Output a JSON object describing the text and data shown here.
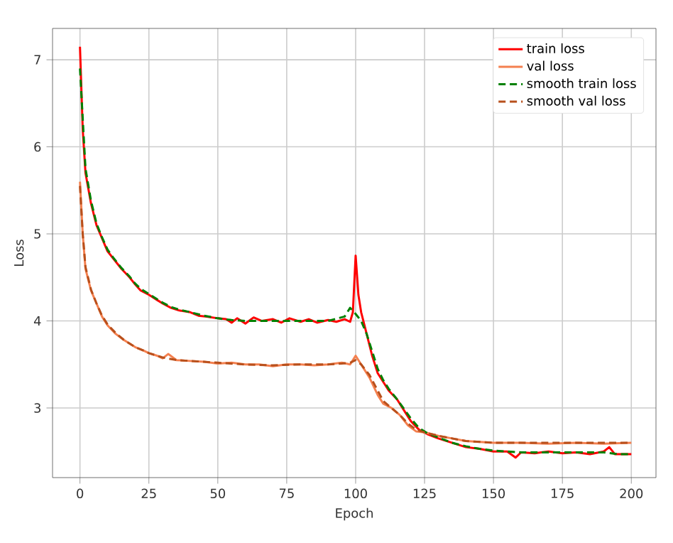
{
  "chart_data": {
    "type": "line",
    "xlabel": "Epoch",
    "ylabel": "Loss",
    "xlim": [
      -9.95,
      208.95
    ],
    "ylim": [
      2.2,
      7.36
    ],
    "xticks": [
      0,
      25,
      50,
      75,
      100,
      125,
      150,
      175,
      200
    ],
    "yticks": [
      3,
      4,
      5,
      6,
      7
    ],
    "grid": true,
    "legend": "top right",
    "marker": "none",
    "series": [
      {
        "name": "train loss",
        "color": "#ff0000",
        "line_style": "solid",
        "x": [
          0,
          1,
          2,
          4,
          6,
          8,
          10,
          12,
          15,
          18,
          20,
          22,
          25,
          28,
          30,
          33,
          36,
          40,
          43,
          46,
          50,
          53,
          55,
          57,
          60,
          63,
          66,
          70,
          73,
          76,
          80,
          83,
          86,
          90,
          93,
          96,
          98,
          99,
          100,
          101,
          102,
          104,
          106,
          108,
          110,
          112,
          115,
          118,
          120,
          123,
          126,
          130,
          135,
          140,
          145,
          150,
          155,
          158,
          160,
          165,
          170,
          175,
          180,
          185,
          190,
          192,
          194,
          200
        ],
        "values": [
          7.15,
          6.2,
          5.7,
          5.35,
          5.1,
          4.95,
          4.8,
          4.72,
          4.6,
          4.5,
          4.42,
          4.35,
          4.3,
          4.24,
          4.2,
          4.15,
          4.12,
          4.1,
          4.06,
          4.05,
          4.03,
          4.02,
          3.98,
          4.03,
          3.97,
          4.04,
          4.0,
          4.02,
          3.98,
          4.03,
          3.99,
          4.02,
          3.98,
          4.01,
          3.99,
          4.02,
          3.99,
          4.1,
          4.75,
          4.3,
          4.1,
          3.85,
          3.6,
          3.4,
          3.3,
          3.2,
          3.1,
          2.95,
          2.85,
          2.75,
          2.7,
          2.65,
          2.6,
          2.55,
          2.53,
          2.5,
          2.5,
          2.43,
          2.49,
          2.48,
          2.5,
          2.48,
          2.49,
          2.47,
          2.5,
          2.55,
          2.47,
          2.47
        ]
      },
      {
        "name": "val loss",
        "color": "#f4804f",
        "line_style": "solid",
        "x": [
          0,
          1,
          2,
          4,
          6,
          8,
          10,
          13,
          16,
          20,
          23,
          25,
          28,
          30,
          32,
          35,
          40,
          45,
          50,
          55,
          60,
          65,
          70,
          75,
          80,
          85,
          90,
          95,
          98,
          100,
          102,
          105,
          108,
          110,
          113,
          116,
          119,
          122,
          125,
          130,
          135,
          140,
          150,
          160,
          170,
          180,
          190,
          200
        ],
        "values": [
          5.6,
          5.0,
          4.6,
          4.35,
          4.2,
          4.05,
          3.95,
          3.85,
          3.78,
          3.7,
          3.66,
          3.63,
          3.6,
          3.57,
          3.62,
          3.55,
          3.54,
          3.53,
          3.51,
          3.52,
          3.5,
          3.5,
          3.48,
          3.5,
          3.5,
          3.49,
          3.5,
          3.52,
          3.5,
          3.6,
          3.5,
          3.35,
          3.15,
          3.05,
          3.0,
          2.92,
          2.8,
          2.73,
          2.72,
          2.68,
          2.65,
          2.62,
          2.6,
          2.6,
          2.59,
          2.6,
          2.59,
          2.6
        ]
      },
      {
        "name": "smooth train loss",
        "color": "#008000",
        "line_style": "dashed",
        "x": [
          0,
          2,
          4,
          6,
          8,
          10,
          12,
          15,
          18,
          20,
          22,
          25,
          28,
          30,
          33,
          36,
          40,
          45,
          50,
          55,
          60,
          70,
          80,
          90,
          96,
          98,
          100,
          102,
          104,
          106,
          108,
          110,
          112,
          115,
          118,
          120,
          123,
          126,
          130,
          135,
          140,
          145,
          150,
          160,
          170,
          180,
          190,
          195,
          200
        ],
        "values": [
          6.9,
          5.75,
          5.38,
          5.12,
          4.96,
          4.82,
          4.73,
          4.61,
          4.51,
          4.43,
          4.37,
          4.31,
          4.25,
          4.21,
          4.16,
          4.13,
          4.1,
          4.06,
          4.03,
          4.01,
          4.0,
          4.0,
          4.0,
          4.0,
          4.05,
          4.15,
          4.08,
          4.0,
          3.85,
          3.65,
          3.45,
          3.32,
          3.22,
          3.1,
          2.97,
          2.88,
          2.77,
          2.71,
          2.66,
          2.6,
          2.56,
          2.53,
          2.51,
          2.49,
          2.49,
          2.49,
          2.49,
          2.47,
          2.47
        ]
      },
      {
        "name": "smooth val loss",
        "color": "#b8501c",
        "line_style": "dashed",
        "x": [
          0,
          1,
          2,
          4,
          6,
          8,
          10,
          13,
          16,
          20,
          23,
          25,
          28,
          30,
          35,
          40,
          45,
          50,
          60,
          70,
          80,
          90,
          95,
          98,
          100,
          102,
          105,
          108,
          110,
          113,
          116,
          119,
          122,
          125,
          130,
          135,
          140,
          150,
          160,
          170,
          180,
          190,
          200
        ],
        "values": [
          5.55,
          5.0,
          4.62,
          4.36,
          4.2,
          4.06,
          3.96,
          3.86,
          3.78,
          3.7,
          3.66,
          3.63,
          3.6,
          3.58,
          3.55,
          3.54,
          3.53,
          3.52,
          3.5,
          3.49,
          3.5,
          3.5,
          3.51,
          3.52,
          3.55,
          3.5,
          3.38,
          3.2,
          3.08,
          3.0,
          2.92,
          2.82,
          2.75,
          2.72,
          2.68,
          2.65,
          2.62,
          2.6,
          2.6,
          2.6,
          2.6,
          2.6,
          2.6
        ]
      }
    ]
  }
}
